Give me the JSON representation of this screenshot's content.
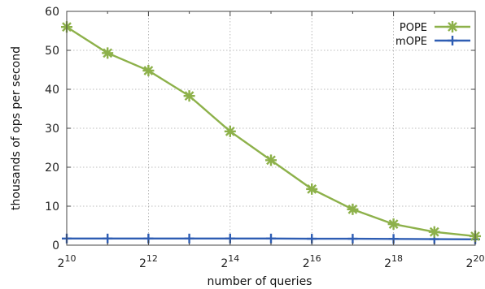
{
  "chart_data": {
    "type": "line",
    "xlabel": "number of queries",
    "ylabel": "thousands of ops per second",
    "x_scale": "log2",
    "x": [
      1024,
      2048,
      4096,
      8192,
      16384,
      32768,
      65536,
      131072,
      262144,
      524288,
      1048576
    ],
    "x_tick_values": [
      1024,
      4096,
      16384,
      65536,
      262144,
      1048576
    ],
    "x_tick_labels": [
      {
        "base": "2",
        "exp": "10"
      },
      {
        "base": "2",
        "exp": "12"
      },
      {
        "base": "2",
        "exp": "14"
      },
      {
        "base": "2",
        "exp": "16"
      },
      {
        "base": "2",
        "exp": "18"
      },
      {
        "base": "2",
        "exp": "20"
      }
    ],
    "ylim": [
      0,
      60
    ],
    "y_ticks": [
      "0",
      "10",
      "20",
      "30",
      "40",
      "50",
      "60"
    ],
    "grid": true,
    "legend_position": "top-right",
    "series": [
      {
        "name": "POPE",
        "color": "#8db14a",
        "marker": "asterisk",
        "values": [
          56.0,
          49.3,
          44.8,
          38.3,
          29.2,
          21.8,
          14.4,
          9.2,
          5.4,
          3.4,
          2.3
        ]
      },
      {
        "name": "mOPE",
        "color": "#2e5db3",
        "marker": "plus",
        "values": [
          1.7,
          1.7,
          1.7,
          1.7,
          1.7,
          1.7,
          1.65,
          1.65,
          1.6,
          1.55,
          1.5
        ]
      }
    ]
  }
}
